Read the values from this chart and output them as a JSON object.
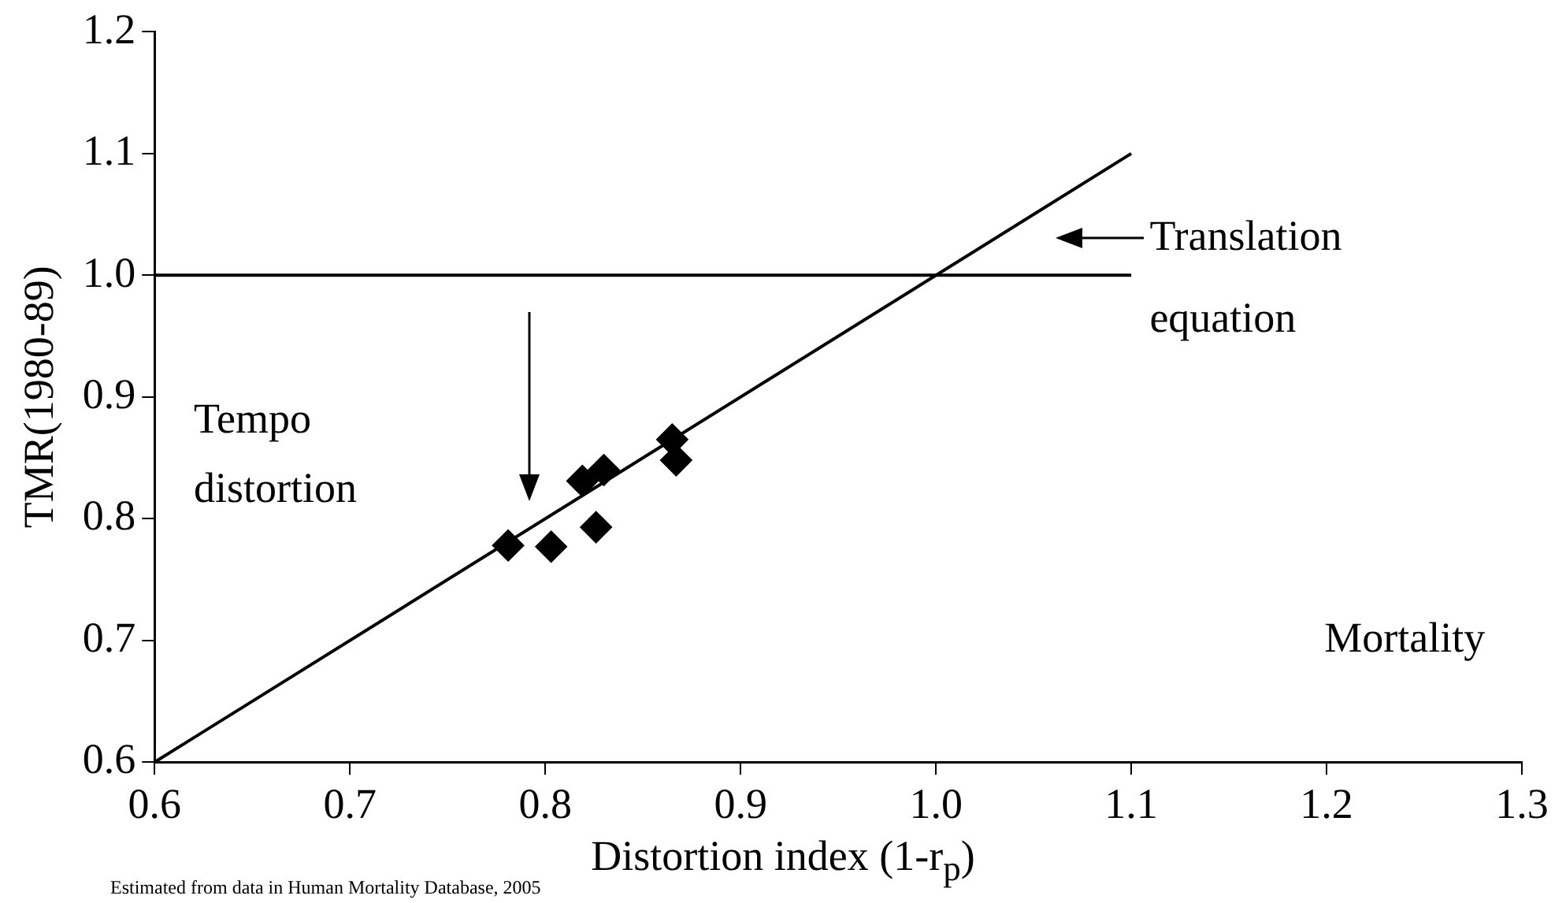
{
  "chart_data": {
    "type": "scatter",
    "xlabel": "Distortion index (1-r$_{p}$)",
    "ylabel": "TMR(1980-89)",
    "xlim": [
      0.6,
      1.3
    ],
    "xticks": [
      0.6,
      0.7,
      0.8,
      0.9,
      {
        "value": 1.0,
        "label": "1.0"
      },
      1.1,
      1.2,
      1.3
    ],
    "ylim": [
      0.6,
      1.2
    ],
    "yticks": [
      0.6,
      0.7,
      0.8,
      0.9,
      {
        "value": 1.0,
        "label": "1.0"
      },
      1.1,
      1.2
    ],
    "grid": false,
    "legend": false,
    "series": [
      {
        "color": "#000000",
        "marker": "diamond",
        "x": [
          0.781,
          0.803,
          0.819,
          0.83,
          0.826,
          0.865,
          0.867
        ],
        "values": [
          0.778,
          0.777,
          0.831,
          0.84,
          0.793,
          0.865,
          0.848
        ]
      },
      {
        "type": "line",
        "color": "#000000",
        "marker": "none",
        "line_style": "solid",
        "x": [
          0.6,
          1.1
        ],
        "values": [
          0.6,
          1.1
        ]
      },
      {
        "type": "line",
        "color": "#000000",
        "marker": "none",
        "line_style": "solid",
        "x": [
          0.6,
          1.1
        ],
        "values": [
          1.0,
          1.0
        ]
      }
    ],
    "annotations": [
      "Translation equation",
      "Tempo distortion",
      "Mortality",
      "Estimated from data in Human Mortality Database, 2005"
    ]
  }
}
